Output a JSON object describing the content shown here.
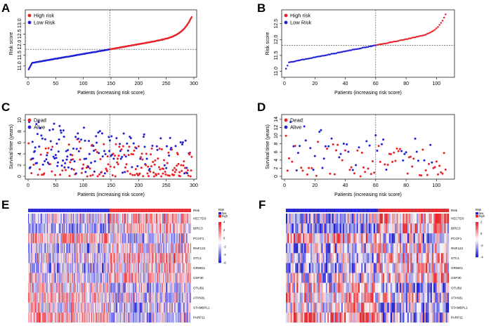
{
  "colors": {
    "high": "#e8232a",
    "low": "#2020d8",
    "mid": "#ffffff"
  },
  "chart_data": [
    {
      "panel": "A",
      "type": "scatter",
      "title": "",
      "xlabel": "Patients (increasing risk score)",
      "ylabel": "Risk score",
      "xlim": [
        0,
        300
      ],
      "ylim": [
        10.6,
        13.5
      ],
      "xticks": [
        0,
        50,
        100,
        150,
        200,
        250,
        300
      ],
      "yticks": [
        11.0,
        11.5,
        12.0,
        12.5,
        13.0
      ],
      "n": 296,
      "cutoff_index": 148,
      "cutoff_value": 11.78,
      "min": 10.75,
      "max": 13.3,
      "series": [
        {
          "name": "High risk",
          "color": "#e8232a"
        },
        {
          "name": "Low Risk",
          "color": "#2020d8"
        }
      ],
      "legend": [
        "High risk",
        "Low Risk"
      ]
    },
    {
      "panel": "B",
      "type": "scatter",
      "title": "",
      "xlabel": "Patients (increasing risk score)",
      "ylabel": "Risk score",
      "xlim": [
        0,
        110
      ],
      "ylim": [
        10.9,
        12.85
      ],
      "xticks": [
        0,
        20,
        40,
        60,
        80,
        100
      ],
      "yticks": [
        11.0,
        11.5,
        12.0,
        12.5
      ],
      "n": 106,
      "cutoff_index": 60,
      "cutoff_value": 11.82,
      "min": 10.95,
      "max": 12.8,
      "series": [
        {
          "name": "High risk",
          "color": "#e8232a"
        },
        {
          "name": "Low Risk",
          "color": "#2020d8"
        }
      ],
      "legend": [
        "High risk",
        "Low Risk"
      ]
    },
    {
      "panel": "C",
      "type": "scatter",
      "xlabel": "Patients (increasing risk score)",
      "ylabel": "Survival time (years)",
      "xlim": [
        0,
        300
      ],
      "ylim": [
        0,
        10.5
      ],
      "xticks": [
        0,
        50,
        100,
        150,
        200,
        250,
        300
      ],
      "yticks": [
        0,
        2,
        4,
        6,
        8,
        10
      ],
      "n": 296,
      "cutoff_index": 148,
      "max_time": 10,
      "legend": [
        "Dead",
        "Alive"
      ]
    },
    {
      "panel": "D",
      "type": "scatter",
      "xlabel": "Patients (increasing risk score)",
      "ylabel": "Survival time (years)",
      "xlim": [
        0,
        110
      ],
      "ylim": [
        0,
        14.5
      ],
      "xticks": [
        0,
        20,
        40,
        60,
        80,
        100
      ],
      "yticks": [
        0,
        2,
        4,
        6,
        8,
        10,
        12,
        14
      ],
      "n": 106,
      "cutoff_index": 60,
      "max_time": 14,
      "legend": [
        "Dead",
        "Alive"
      ]
    },
    {
      "panel": "E",
      "type": "heatmap",
      "genes": [
        "HECTD3",
        "BIRC3",
        "PCGF1",
        "RNF123",
        "STC1",
        "GRWD1",
        "USP30",
        "OTUB2",
        "ATXN3L",
        "STAMBPL1",
        "PARP11"
      ],
      "annotation_label": "Risk",
      "annotation_levels": [
        "low",
        "high"
      ],
      "n": 296,
      "cutoff_index": 148,
      "color_scale_ticks": [
        4,
        2,
        0,
        -2,
        -4,
        -6
      ]
    },
    {
      "panel": "F",
      "type": "heatmap",
      "genes": [
        "HECTD3",
        "BIRC3",
        "PCGF1",
        "RNF123",
        "STC1",
        "GRWD1",
        "USP30",
        "OTUB2",
        "ATXN3L",
        "STAMBPL1",
        "PARP11"
      ],
      "annotation_label": "Risk",
      "annotation_levels": [
        "low",
        "high"
      ],
      "n": 106,
      "cutoff_index": 60,
      "color_scale_ticks": [
        2,
        0,
        -2,
        -4
      ]
    }
  ]
}
